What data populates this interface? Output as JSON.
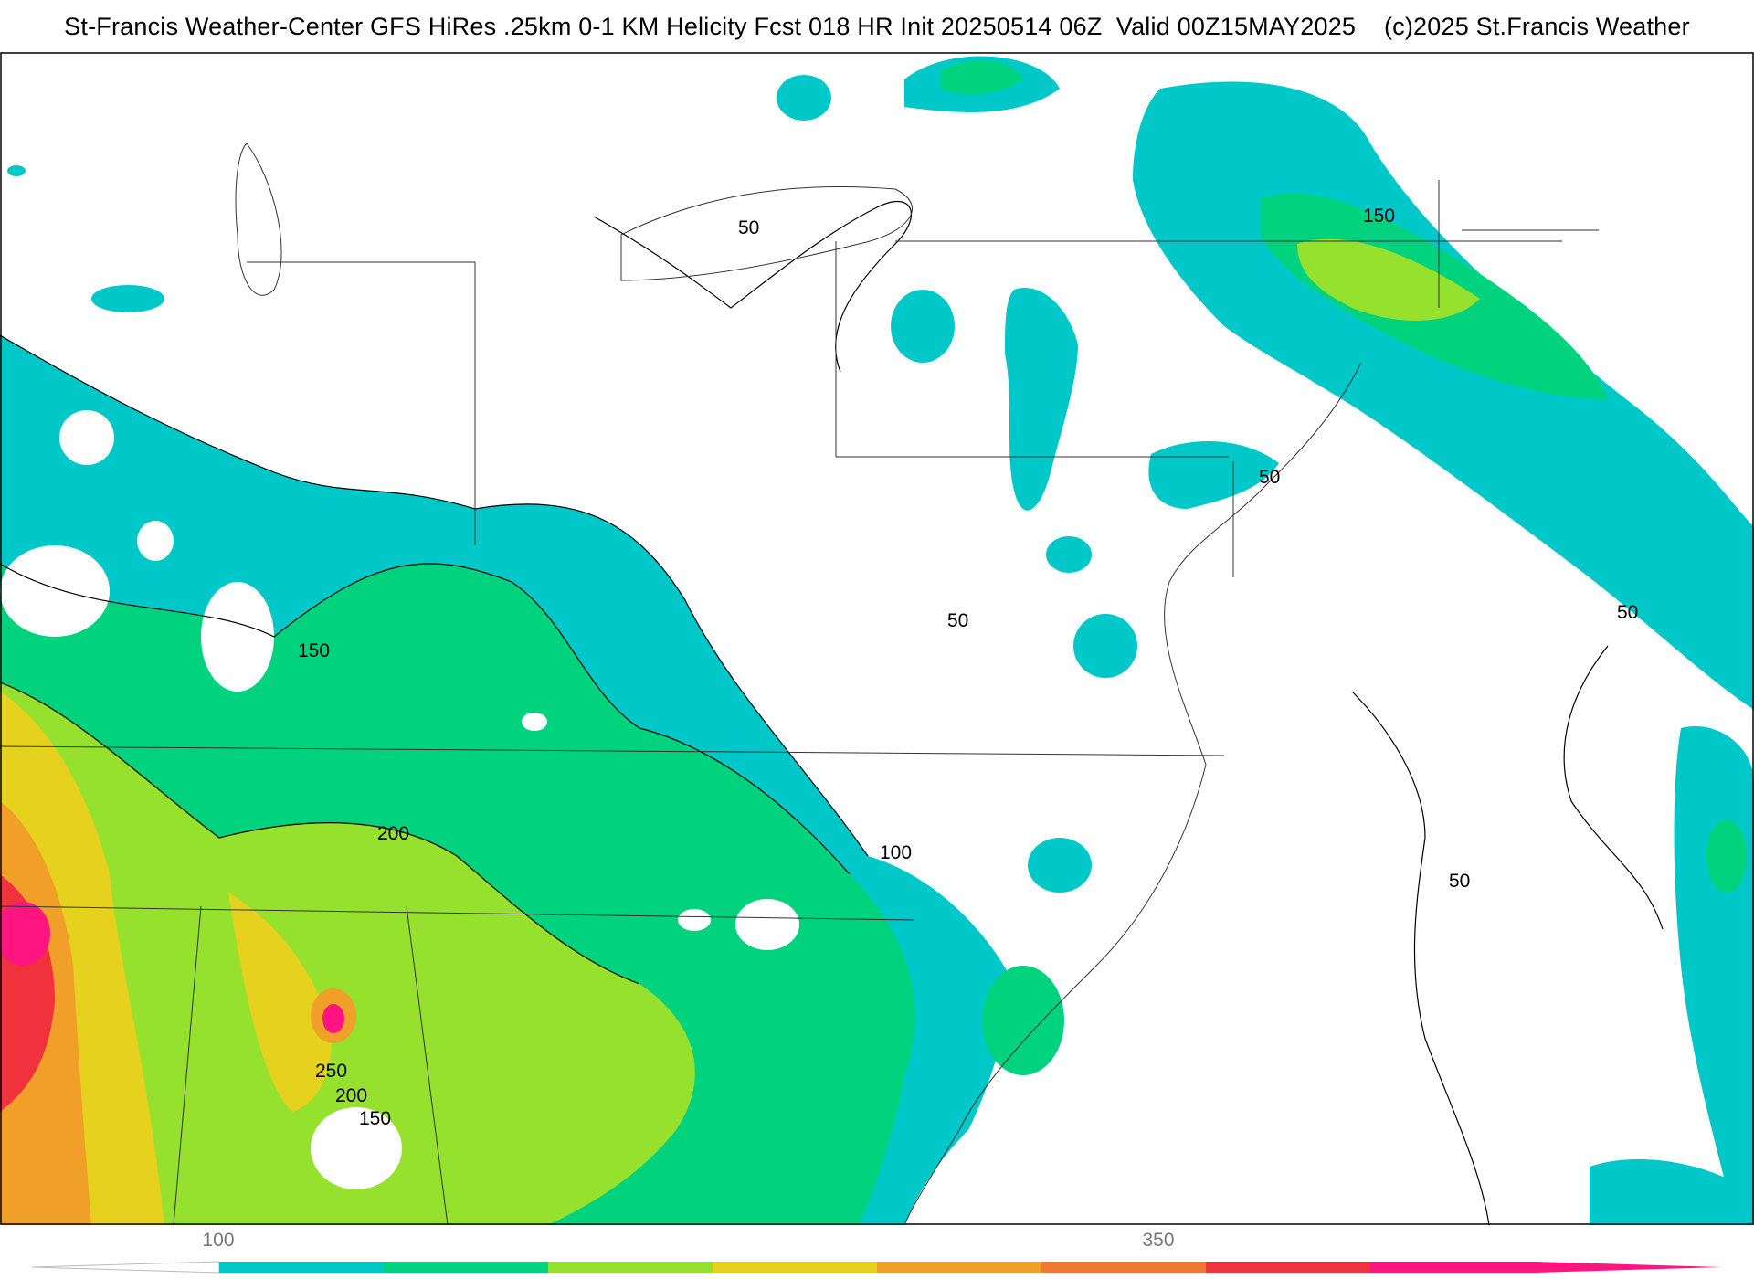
{
  "title": {
    "left": "St-Francis Weather-Center GFS HiRes .25km 0-1 KM Helicity Fcst 018 HR Init 20250514 06Z  Valid 00Z15MAY2025",
    "right": "(c)2025 St.Francis Weather"
  },
  "map": {
    "variable": "0-1 KM Helicity",
    "contour_labels": [
      "50",
      "50",
      "150",
      "150",
      "100",
      "200",
      "250",
      "200",
      "150",
      "50",
      "50",
      "50"
    ]
  },
  "colorbar": {
    "tick_labels": [
      "100",
      "350"
    ],
    "colors": [
      "#00c8c8",
      "#00d27d",
      "#96e12d",
      "#e6d21e",
      "#f0a028",
      "#f07832",
      "#f0323c",
      "#ff1480"
    ],
    "low_color": "#ffffff",
    "high_color": "#ff1480"
  }
}
